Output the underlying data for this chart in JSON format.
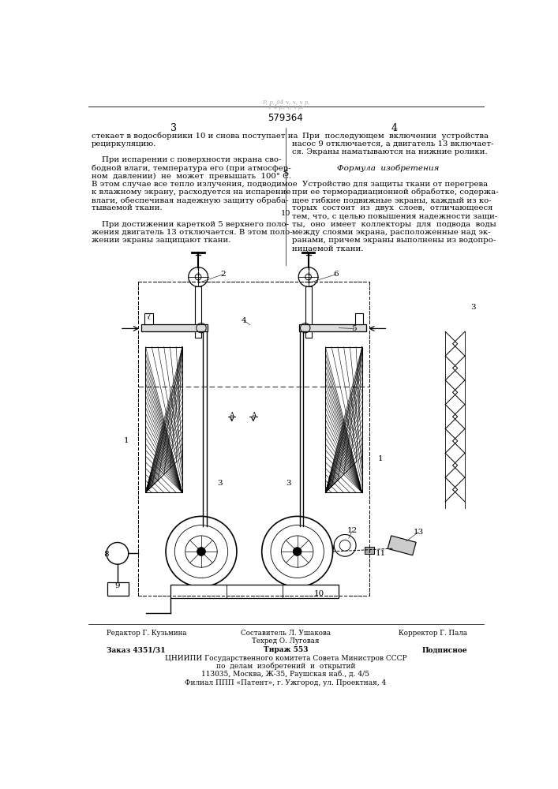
{
  "page_width": 7.07,
  "page_height": 10.0,
  "bg_color": "#ffffff",
  "patent_number": "579364",
  "page_numbers": [
    "3",
    "4"
  ],
  "left_column_text": [
    "стекает в водосборники 10 и снова поступает на",
    "рециркуляцию.",
    "",
    "    При испарении с поверхности экрана сво-",
    "бодной влаги, температура его (при атмосфер-",
    "ном  давлении)  не  может  превышать  100° С.",
    "В этом случае все тепло излучения, подводимое",
    "к влажному экрану, расходуется на испарение",
    "влаги, обеспечивая надежную защиту обраба-",
    "тываемой ткани.",
    "",
    "    При достижении кареткой 5 верхнего поло-",
    "жения двигатель 13 отключается. В этом поло-",
    "жении экраны защищают ткани."
  ],
  "right_column_text": [
    "    При  последующем  включении  устройства",
    "насос 9 отключается, а двигатель 13 включает-",
    "ся. Экраны наматываются на нижние ролики.",
    "",
    "Формула  изобретения",
    "",
    "    Устройство для защиты ткани от перегрева",
    "при ее терморадиационной обработке, содержа-",
    "щее гибкие подвижные экраны, каждый из ко-",
    "торых  состоит  из  двух  слоев,  отличающееся",
    "тем, что, с целью повышения надежности защи-",
    "ты,  оно  имеет  коллекторы  для  подвода  воды",
    "между слоями экрана, расположенные над эк-",
    "ранами, причем экраны выполнены из водопро-",
    "ницаемой ткани."
  ],
  "footer_line1_left": "Редактор Г. Кузьмина",
  "footer_line1_mid1": "Составитель Л. Ушакова",
  "footer_line1_right": "Корректор Г. Пала",
  "footer_line2_mid": "Техред О. Луговая",
  "footer_line3_left": "Заказ 4351/31",
  "footer_line3_mid": "Тираж 553",
  "footer_line3_right": "Подписное",
  "footer_line4": "ЦНИИПИ Государственного комитета Совета Министров СССР",
  "footer_line5": "по  делам  изобретений  и  открытий",
  "footer_line6": "113035, Москва, Ж-35, Раушская наб., д. 4/5",
  "footer_line7": "Филиал ППП «Патент», г. Ужгород, ул. Проектная, 4"
}
